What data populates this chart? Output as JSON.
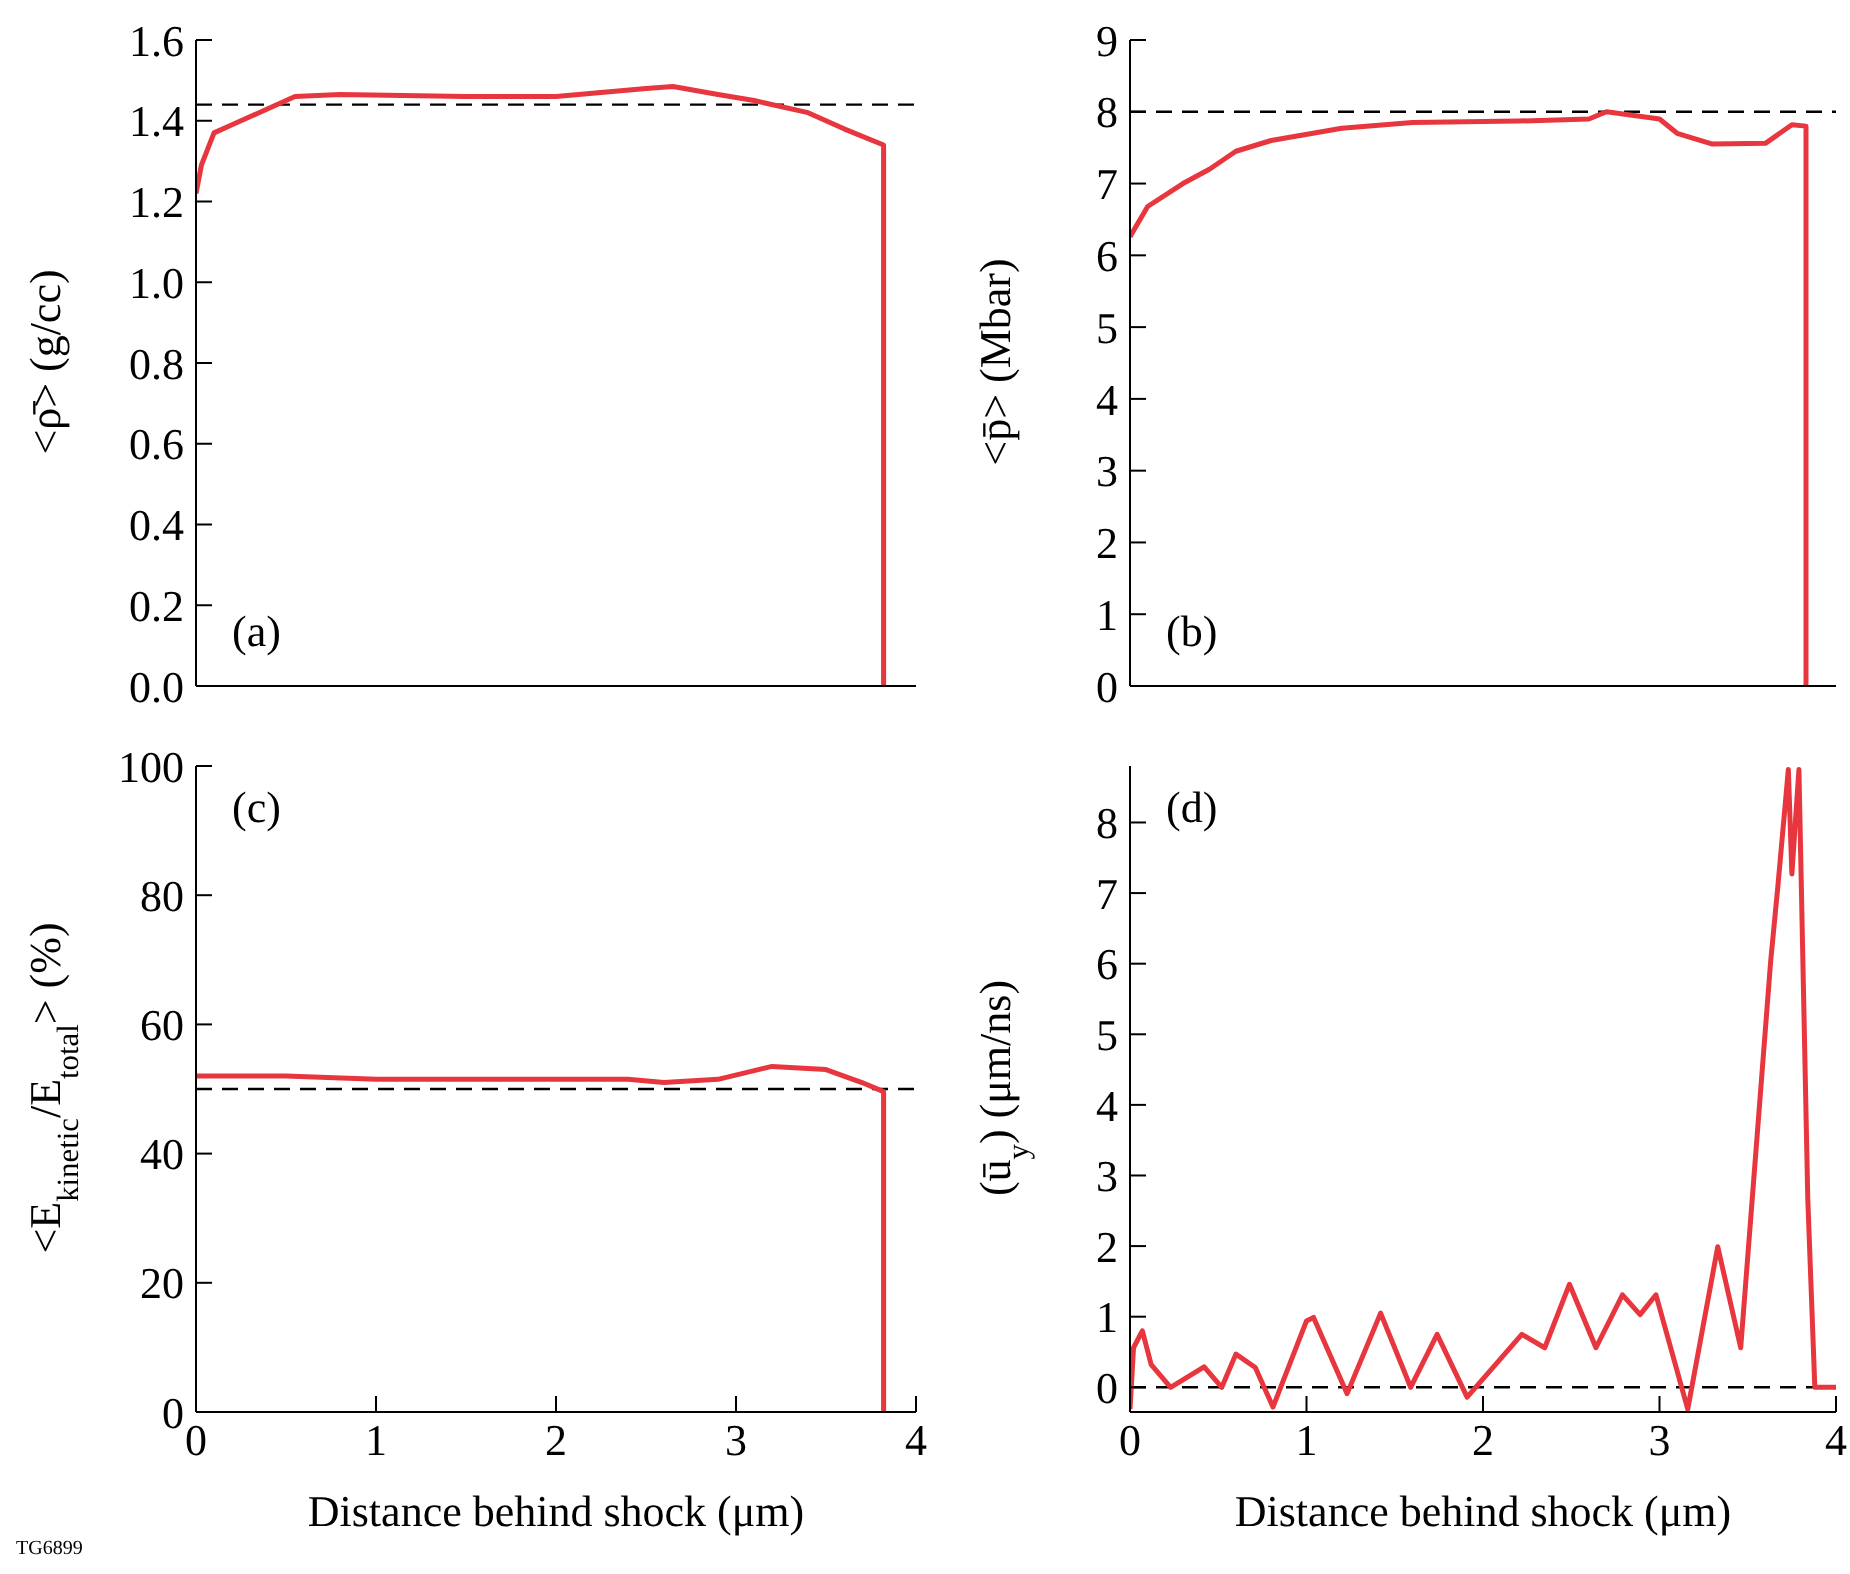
{
  "chart_data": [
    {
      "type": "line",
      "ylabel": "<ρ̄> (g/cc)",
      "annotations": [
        "(a)"
      ],
      "xlim": [
        0,
        4
      ],
      "xticks": [
        0,
        1,
        2,
        3,
        4
      ],
      "ylim": [
        0,
        1.6
      ],
      "yticks": [
        {
          "value": 0,
          "label": "0.0"
        },
        0.2,
        0.4,
        0.6,
        0.8,
        {
          "value": 1,
          "label": "1.0"
        },
        1.2,
        1.4,
        1.6
      ],
      "tick_labels": "y",
      "ref_lines": [
        {
          "axis": "y",
          "value": 1.44,
          "color": "#000000",
          "line_style": "dashed"
        }
      ],
      "series": [
        {
          "color": "#e8363f",
          "x": [
            0,
            0.03,
            0.1,
            0.2,
            0.35,
            0.55,
            0.8,
            1.5,
            2,
            2.5,
            2.65,
            2.9,
            3.1,
            3.4,
            3.6,
            3.82,
            3.82
          ],
          "values": [
            1.22,
            1.29,
            1.37,
            1.39,
            1.42,
            1.46,
            1.465,
            1.46,
            1.46,
            1.48,
            1.485,
            1.465,
            1.45,
            1.42,
            1.38,
            1.34,
            0
          ]
        }
      ]
    },
    {
      "type": "line",
      "ylabel": "<p̄> (Mbar)",
      "annotations": [
        "(b)"
      ],
      "xlim": [
        0,
        4
      ],
      "xticks": [
        0,
        1,
        2,
        3,
        4
      ],
      "ylim": [
        0,
        9
      ],
      "yticks": [
        0,
        1,
        2,
        3,
        4,
        5,
        6,
        7,
        8,
        9
      ],
      "tick_labels": "y",
      "ref_lines": [
        {
          "axis": "y",
          "value": 8,
          "color": "#000000",
          "line_style": "dashed"
        }
      ],
      "series": [
        {
          "color": "#e8363f",
          "x": [
            0,
            0.1,
            0.3,
            0.45,
            0.6,
            0.8,
            1.2,
            1.6,
            2.2,
            2.6,
            2.7,
            3,
            3.1,
            3.3,
            3.6,
            3.75,
            3.83,
            3.83
          ],
          "values": [
            6.26,
            6.68,
            7,
            7.2,
            7.45,
            7.6,
            7.77,
            7.85,
            7.87,
            7.9,
            8,
            7.9,
            7.7,
            7.55,
            7.56,
            7.82,
            7.8,
            0
          ]
        }
      ]
    },
    {
      "type": "line",
      "xlabel": "Distance behind shock (μm)",
      "ylabel": "<E$_{kinetic}$/E$_{total}$> (%)",
      "annotations": [
        "(c)",
        "TG6899"
      ],
      "xlim": [
        0,
        4
      ],
      "xticks": [
        0,
        1,
        2,
        3,
        4
      ],
      "ylim": [
        0,
        100
      ],
      "yticks": [
        0,
        20,
        40,
        60,
        80,
        100
      ],
      "ref_lines": [
        {
          "axis": "y",
          "value": 50,
          "color": "#000000",
          "line_style": "dashed"
        }
      ],
      "series": [
        {
          "color": "#e8363f",
          "x": [
            0,
            0.5,
            1,
            1.5,
            2,
            2.4,
            2.6,
            2.9,
            3.2,
            3.5,
            3.7,
            3.82,
            3.82
          ],
          "values": [
            52,
            52,
            51.5,
            51.5,
            51.5,
            51.5,
            51,
            51.5,
            53.5,
            53,
            51,
            49.6,
            0
          ]
        }
      ]
    },
    {
      "type": "line",
      "xlabel": "Distance behind shock (μm)",
      "ylabel": "(ū$_{y}$) (μm/ns)",
      "annotations": [
        "(d)"
      ],
      "xlim": [
        0,
        4
      ],
      "xticks": [
        0,
        1,
        2,
        3,
        4
      ],
      "ylim": [
        -0.35,
        8.8
      ],
      "yticks": [
        0,
        1,
        2,
        3,
        4,
        5,
        6,
        7,
        8
      ],
      "ref_lines": [
        {
          "axis": "y",
          "value": 0,
          "color": "#000000",
          "line_style": "dashed"
        }
      ],
      "series": [
        {
          "color": "#e8363f",
          "x": [
            0,
            0.02,
            0.07,
            0.12,
            0.23,
            0.42,
            0.52,
            0.6,
            0.71,
            0.81,
            1,
            1.04,
            1.23,
            1.42,
            1.59,
            1.74,
            1.91,
            2.22,
            2.35,
            2.49,
            2.64,
            2.79,
            2.89,
            2.98,
            3.16,
            3.33,
            3.46,
            3.63,
            3.67,
            3.73,
            3.75,
            3.79,
            3.84,
            3.88,
            4
          ],
          "values": [
            -0.31,
            0.56,
            0.8,
            0.32,
            0,
            0.29,
            0,
            0.47,
            0.28,
            -0.28,
            0.94,
            0.99,
            -0.09,
            1.05,
            0,
            0.75,
            -0.14,
            0.75,
            0.56,
            1.46,
            0.56,
            1.31,
            1.03,
            1.31,
            -0.31,
            1.99,
            0.56,
            6.04,
            7.08,
            8.75,
            7.27,
            8.75,
            2.68,
            0,
            0
          ]
        }
      ]
    }
  ]
}
